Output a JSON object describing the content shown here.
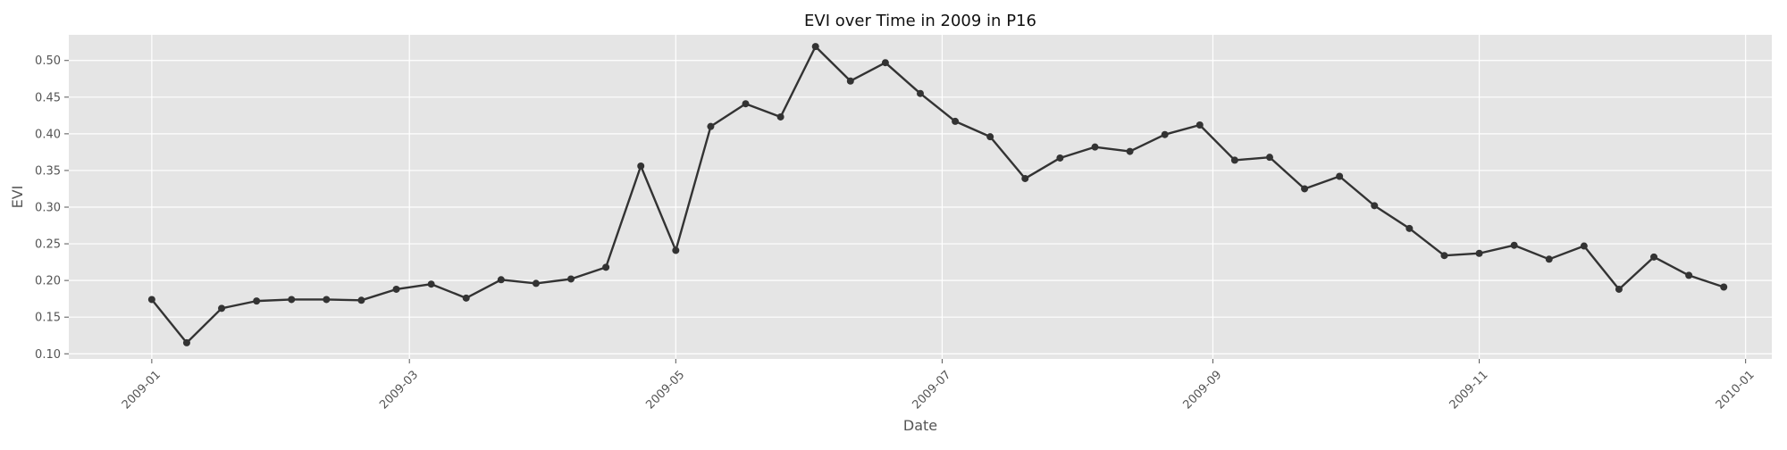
{
  "chart_data": {
    "type": "line",
    "title": "EVI over Time in 2009 in P16",
    "xlabel": "Date",
    "ylabel": "EVI",
    "ylim": [
      0.093,
      0.535
    ],
    "xlim": [
      "2008-12-13",
      "2010-01-07"
    ],
    "y_ticks": [
      0.1,
      0.15,
      0.2,
      0.25,
      0.3,
      0.35,
      0.4,
      0.45,
      0.5
    ],
    "x_ticks": [
      "2009-01-01",
      "2009-03-01",
      "2009-05-01",
      "2009-07-01",
      "2009-09-01",
      "2009-11-01",
      "2010-01-01"
    ],
    "x_tick_labels": [
      "2009-01",
      "2009-03",
      "2009-05",
      "2009-07",
      "2009-09",
      "2009-11",
      "2010-01"
    ],
    "grid": true,
    "background": "#e5e5e5",
    "line_color": "#333333",
    "series": [
      {
        "x": [
          "2009-01-01",
          "2009-01-09",
          "2009-01-17",
          "2009-01-25",
          "2009-02-02",
          "2009-02-10",
          "2009-02-18",
          "2009-02-26",
          "2009-03-06",
          "2009-03-14",
          "2009-03-22",
          "2009-03-30",
          "2009-04-07",
          "2009-04-15",
          "2009-04-23",
          "2009-05-01",
          "2009-05-09",
          "2009-05-17",
          "2009-05-25",
          "2009-06-02",
          "2009-06-10",
          "2009-06-18",
          "2009-06-26",
          "2009-07-04",
          "2009-07-12",
          "2009-07-20",
          "2009-07-28",
          "2009-08-05",
          "2009-08-13",
          "2009-08-21",
          "2009-08-29",
          "2009-09-06",
          "2009-09-14",
          "2009-09-22",
          "2009-09-30",
          "2009-10-08",
          "2009-10-16",
          "2009-10-24",
          "2009-11-01",
          "2009-11-09",
          "2009-11-17",
          "2009-11-25",
          "2009-12-03",
          "2009-12-11",
          "2009-12-19",
          "2009-12-27"
        ],
        "y": [
          0.174,
          0.115,
          0.162,
          0.172,
          0.174,
          0.174,
          0.173,
          0.188,
          0.195,
          0.176,
          0.201,
          0.196,
          0.202,
          0.218,
          0.356,
          0.241,
          0.41,
          0.441,
          0.423,
          0.519,
          0.472,
          0.497,
          0.455,
          0.417,
          0.396,
          0.339,
          0.367,
          0.382,
          0.376,
          0.399,
          0.412,
          0.364,
          0.368,
          0.325,
          0.342,
          0.302,
          0.271,
          0.234,
          0.237,
          0.248,
          0.229,
          0.247,
          0.188,
          0.232,
          0.207,
          0.191
        ]
      }
    ]
  }
}
